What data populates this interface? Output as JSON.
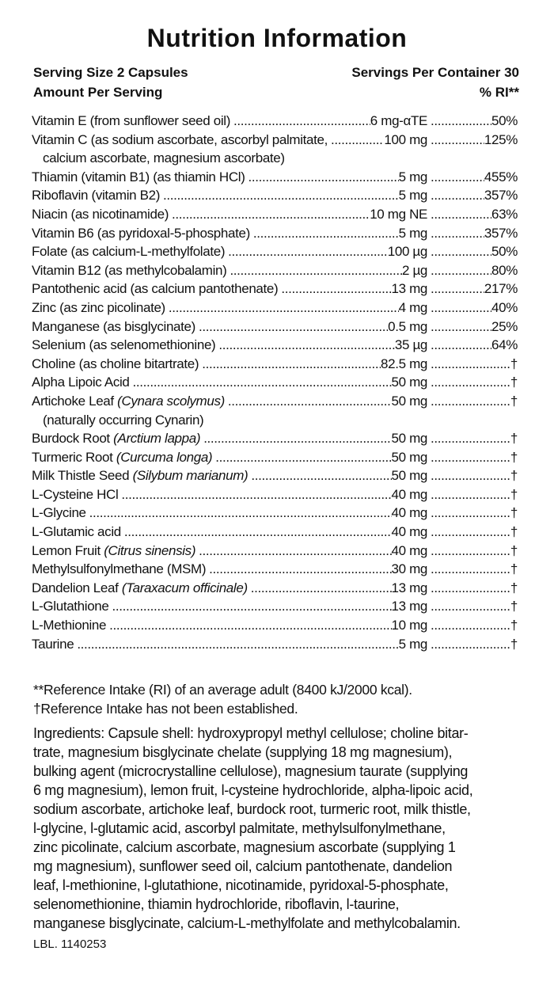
{
  "title": "Nutrition Information",
  "serving_size": "Serving Size 2 Capsules",
  "servings_per_container": "Servings Per Container 30",
  "amount_per_serving": "Amount Per Serving",
  "ri_header": "% RI**",
  "rows": [
    {
      "name": "Vitamin E (from sunflower seed oil)",
      "amount": "6 mg-αTE",
      "ri": "50%"
    },
    {
      "name": "Vitamin C (as sodium ascorbate, ascorbyl palmitate,",
      "amount": "100 mg",
      "ri": "125%",
      "cont": "calcium ascorbate, magnesium ascorbate)"
    },
    {
      "name": "Thiamin (vitamin B1) (as thiamin HCl)",
      "amount": "5 mg",
      "ri": "455%"
    },
    {
      "name": "Riboflavin (vitamin B2)",
      "amount": "5 mg",
      "ri": "357%"
    },
    {
      "name": "Niacin (as nicotinamide)",
      "amount": "10 mg NE",
      "ri": "63%"
    },
    {
      "name": "Vitamin B6 (as pyridoxal-5-phosphate)",
      "amount": "5 mg",
      "ri": "357%"
    },
    {
      "name": "Folate (as calcium-L-methylfolate)",
      "amount": "100 µg",
      "ri": "50%"
    },
    {
      "name": "Vitamin B12 (as methylcobalamin)",
      "amount": "2 µg",
      "ri": "80%"
    },
    {
      "name": "Pantothenic acid (as calcium pantothenate)",
      "amount": "13 mg",
      "ri": "217%"
    },
    {
      "name": "Zinc (as zinc picolinate)",
      "amount": "4 mg",
      "ri": "40%"
    },
    {
      "name": "Manganese (as bisglycinate)",
      "amount": "0.5 mg",
      "ri": "25%"
    },
    {
      "name": "Selenium (as selenomethionine)",
      "amount": "35 µg",
      "ri": "64%"
    },
    {
      "name": "Choline (as choline bitartrate)",
      "amount": "82.5 mg",
      "ri": "†"
    },
    {
      "name": "Alpha Lipoic Acid",
      "amount": "50 mg",
      "ri": "†"
    },
    {
      "name": "Artichoke Leaf ",
      "latin": "(Cynara scolymus)",
      "amount": "50 mg",
      "ri": "†",
      "cont": "(naturally occurring Cynarin)"
    },
    {
      "name": "Burdock Root ",
      "latin": "(Arctium lappa)",
      "amount": "50 mg",
      "ri": "†"
    },
    {
      "name": "Turmeric Root ",
      "latin": "(Curcuma longa)",
      "amount": "50 mg",
      "ri": "†"
    },
    {
      "name": "Milk Thistle Seed ",
      "latin": "(Silybum marianum)",
      "amount": "50 mg",
      "ri": "†"
    },
    {
      "name": "L-Cysteine HCl",
      "amount": "40 mg",
      "ri": "†"
    },
    {
      "name": "L-Glycine",
      "amount": "40 mg",
      "ri": "†"
    },
    {
      "name": "L-Glutamic acid",
      "amount": "40 mg",
      "ri": "†"
    },
    {
      "name": "Lemon Fruit ",
      "latin": "(Citrus sinensis)",
      "amount": "40 mg",
      "ri": "†"
    },
    {
      "name": "Methylsulfonylmethane (MSM)",
      "amount": "30 mg",
      "ri": "†"
    },
    {
      "name": "Dandelion Leaf ",
      "latin": "(Taraxacum officinale)",
      "amount": "13 mg",
      "ri": "†"
    },
    {
      "name": "L-Glutathione",
      "amount": "13 mg",
      "ri": "†"
    },
    {
      "name": "L-Methionine",
      "amount": "10 mg",
      "ri": "†"
    },
    {
      "name": "Taurine",
      "amount": "5 mg",
      "ri": "†"
    }
  ],
  "footnote_ri": "**Reference Intake (RI) of an average adult (8400 kJ/2000 kcal).",
  "footnote_dagger": "†Reference Intake has not been established.",
  "ingredients_lines": [
    "Ingredients: Capsule shell: hydroxypropyl methyl cellulose; choline bitar-",
    "trate, magnesium bisglycinate chelate (supplying 18 mg magnesium),",
    "bulking agent (microcrystalline cellulose), magnesium taurate (supplying",
    "6 mg magnesium), lemon fruit, l-cysteine hydrochloride, alpha-lipoic acid,",
    "sodium ascorbate, artichoke leaf, burdock root, turmeric root, milk thistle,",
    "l-glycine, l-glutamic acid, ascorbyl palmitate, methylsulfonylmethane,",
    "zinc picolinate, calcium ascorbate, magnesium ascorbate (supplying 1",
    "mg magnesium), sunflower seed oil, calcium pantothenate, dandelion",
    "leaf, l-methionine, l-glutathione, nicotinamide, pyridoxal-5-phosphate,",
    "selenomethionine, thiamin hydrochloride, riboflavin, l-taurine,",
    "manganese bisglycinate, calcium-L-methylfolate and methylcobalamin."
  ],
  "label_code": "LBL. 1140253"
}
